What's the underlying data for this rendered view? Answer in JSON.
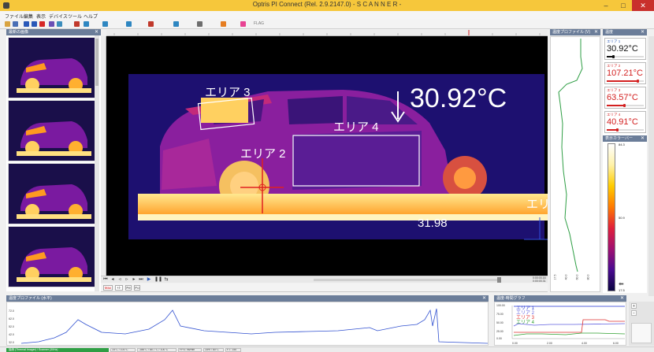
{
  "window": {
    "title": "Optris PI Connect (Rel. 2.9.2147.0) - S C A N N E R -",
    "minimize": "–",
    "maximize": "□",
    "close": "✕"
  },
  "menu": [
    "ファイル",
    "編集",
    "表示",
    "デバイス",
    "ツール",
    "ヘルプ"
  ],
  "toolbar": {
    "icons": [
      "open-icon",
      "save-icon",
      "play-icon",
      "stop-icon",
      "record-icon",
      "snapshot-icon",
      "settings-icon",
      "palette-icon",
      "chart-icon",
      "measure-icon",
      "area-icon",
      "line-icon",
      "grid-icon",
      "layout-icon",
      "alarm-icon",
      "info-icon"
    ],
    "flag_label": "FLAG"
  },
  "panes": {
    "snapshots_title": "最新の画像",
    "vprofile_title": "温度プロファイル (V)",
    "measure_title": "温度",
    "palette_title": "表示カラーバー",
    "hprofile_title": "温度プロファイル (水平)",
    "timechart_title": "温度-時間グラフ"
  },
  "thermal_view": {
    "areas": [
      {
        "label": "エリア 3"
      },
      {
        "label": "エリア 4"
      },
      {
        "label": "エリア 2"
      },
      {
        "label": "エリア"
      }
    ],
    "spot_temperature": "30.92°C",
    "bottom_value": "31.98"
  },
  "playback": {
    "time_top": "0:00:00.16",
    "time_bottom": "0:00:00.31",
    "sub_labels": [
      "Max",
      "+/-",
      "Fe",
      "Fo"
    ]
  },
  "measurements": [
    {
      "name": "エリア 1",
      "value": "30.92°C",
      "color": "#111111",
      "level": 0.18
    },
    {
      "name": "エリア 2",
      "value": "107.21°C",
      "color": "#d32020",
      "level": 0.82
    },
    {
      "name": "エリア 3",
      "value": "63.57°C",
      "color": "#d32020",
      "level": 0.46
    },
    {
      "name": "エリア 4",
      "value": "40.91°C",
      "color": "#d32020",
      "level": 0.28
    }
  ],
  "palette": {
    "top": "84.3",
    "mid": "50.9",
    "bottom": "17.5"
  },
  "vprofile_ticks": [
    "17.5",
    "40.0",
    "60.0",
    "80.0"
  ],
  "hprofile_ticks": [
    "72.0",
    "62.0",
    "52.0",
    "42.0",
    "32.0"
  ],
  "timechart": {
    "y_ticks": [
      "100.00",
      "75.00",
      "50.00",
      "25.00",
      "0.00"
    ],
    "x_ticks": [
      "0.00",
      "2.00",
      "4.00",
      "6.00"
    ],
    "legend": [
      {
        "name": "エリア 1",
        "color": "#2030d0"
      },
      {
        "name": "エリア 2",
        "color": "#6060e0"
      },
      {
        "name": "エリア 3",
        "color": "#e03030"
      },
      {
        "name": "エリア 4",
        "color": "#30a030"
      }
    ]
  },
  "status": {
    "connection": "接続 (Thermal Imager) / Scanner (30Hz)",
    "cells": [
      "15°C / 100°C",
      "-186°C / 85.7°C / 100°C",
      "FPS: 96/min",
      "15% / 80°C",
      "F.T: 150"
    ]
  }
}
